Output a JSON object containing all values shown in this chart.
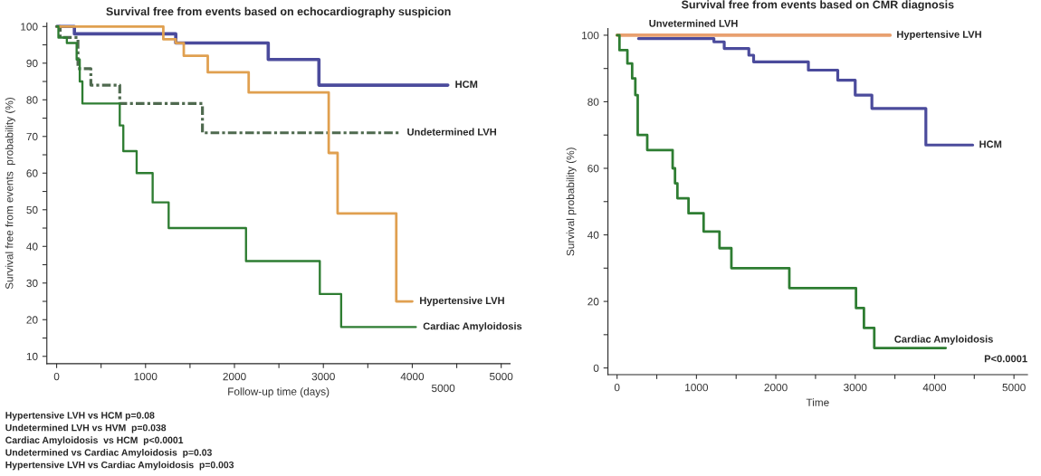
{
  "chart_data": [
    {
      "type": "step",
      "title": "Survival free from events based on echocardiography suspicion",
      "xlabel": "Follow-up time (days)",
      "ylabel": "Survival free from events  probability (%)",
      "xlim": [
        -110,
        5100
      ],
      "xticks": [
        0,
        {
          "value": 500,
          "label": null
        },
        1000,
        {
          "value": 1500,
          "label": null
        },
        2000,
        {
          "value": 2500,
          "label": null
        },
        3000,
        {
          "value": 3500,
          "label": null
        },
        4000,
        {
          "value": 4500,
          "label": null
        },
        5000
      ],
      "ylim": [
        8,
        101
      ],
      "yticks": [
        10,
        {
          "value": 15,
          "label": null
        },
        20,
        {
          "value": 25,
          "label": null
        },
        30,
        {
          "value": 35,
          "label": null
        },
        40,
        {
          "value": 45,
          "label": null
        },
        50,
        {
          "value": 55,
          "label": null
        },
        60,
        {
          "value": 65,
          "label": null
        },
        70,
        {
          "value": 75,
          "label": null
        },
        80,
        {
          "value": 85,
          "label": null
        },
        90,
        {
          "value": 95,
          "label": null
        },
        100
      ],
      "grid": false,
      "legend": false,
      "series": [
        {
          "name": "HCM",
          "color": "#4b4b9c",
          "line_style": "solid",
          "x": [
            0,
            200,
            1340,
            2380,
            2950,
            4400
          ],
          "values": [
            100,
            98,
            95.5,
            91,
            84,
            84
          ]
        },
        {
          "name": "Undetermined LVH",
          "color": "#4f6a4f",
          "line_style": "dashdot",
          "x": [
            0,
            40,
            240,
            385,
            710,
            1640,
            3860
          ],
          "values": [
            100,
            97,
            88.5,
            84,
            79,
            71,
            71
          ]
        },
        {
          "name": "Hypertensive LVH",
          "color": "#e0a050",
          "line_style": "solid",
          "x": [
            0,
            1200,
            1340,
            1430,
            1700,
            2160,
            3060,
            3160,
            3820,
            4000
          ],
          "values": [
            100,
            96.5,
            95.5,
            92,
            87.5,
            82,
            65.5,
            49,
            25,
            25
          ]
        },
        {
          "name": "Cardiac Amyloidosis",
          "color": "#2e7d32",
          "line_style": "solid",
          "x": [
            0,
            20,
            115,
            225,
            260,
            290,
            710,
            750,
            900,
            1080,
            1260,
            2130,
            2960,
            3200,
            4040
          ],
          "values": [
            100,
            97,
            95.5,
            91,
            85,
            79,
            73,
            66,
            60,
            52,
            45,
            36,
            27,
            18,
            18
          ]
        }
      ],
      "annotations": [
        "5000",
        "Hypertensive LVH vs HCM p=0.08",
        "Undetermined LVH vs HVM  p=0.038",
        "Cardiac Amyloidosis  vs HCM  p<0.0001",
        "Undetermined vs Cardiac Amyloidosis  p=0.03",
        "Hypertensive LVH vs Cardiac Amyloidosis  p=0.003"
      ]
    },
    {
      "type": "step",
      "title": "Survival free from events based on CMR diagnosis",
      "xlabel": "Time",
      "ylabel": "Survival probability (%)",
      "xlim": [
        -115,
        5170
      ],
      "xticks": [
        0,
        {
          "value": 500,
          "label": null
        },
        1000,
        {
          "value": 1500,
          "label": null
        },
        2000,
        {
          "value": 2500,
          "label": null
        },
        3000,
        {
          "value": 3500,
          "label": null
        },
        4000,
        {
          "value": 4500,
          "label": null
        },
        5000
      ],
      "ylim": [
        -2,
        102
      ],
      "yticks": [
        0,
        {
          "value": 10,
          "label": null
        },
        20,
        {
          "value": 30,
          "label": null
        },
        40,
        {
          "value": 50,
          "label": null
        },
        60,
        {
          "value": 70,
          "label": null
        },
        80,
        {
          "value": 90,
          "label": null
        },
        100
      ],
      "grid": false,
      "legend": false,
      "series": [
        {
          "name": "Hypertensive LVH",
          "color": "#e8a070",
          "line_style": "solid",
          "x": [
            0,
            3440
          ],
          "values": [
            100,
            100
          ]
        },
        {
          "name": "HCM",
          "color": "#4b4b9c",
          "line_style": "solid",
          "x": [
            270,
            1220,
            1350,
            1660,
            1720,
            2410,
            2780,
            3000,
            3210,
            3890,
            4480
          ],
          "values": [
            99,
            98,
            96,
            94,
            92,
            89.5,
            86.5,
            82,
            78,
            67,
            67
          ]
        },
        {
          "name": "Cardiac Amyloidosis",
          "color": "#2e7d32",
          "line_style": "solid",
          "x": [
            0,
            30,
            130,
            190,
            230,
            260,
            380,
            700,
            730,
            760,
            900,
            1090,
            1290,
            1440,
            2170,
            3010,
            3110,
            3240,
            4140
          ],
          "values": [
            100,
            95.5,
            91.5,
            87,
            82,
            70,
            65.5,
            60,
            55.5,
            51,
            46.5,
            41,
            36,
            30,
            24,
            18,
            12,
            6,
            6
          ]
        }
      ],
      "annotations": [
        {
          "text": "Unvetermined LVH",
          "x": 400,
          "y": 100
        },
        "P<0.0001"
      ]
    }
  ]
}
